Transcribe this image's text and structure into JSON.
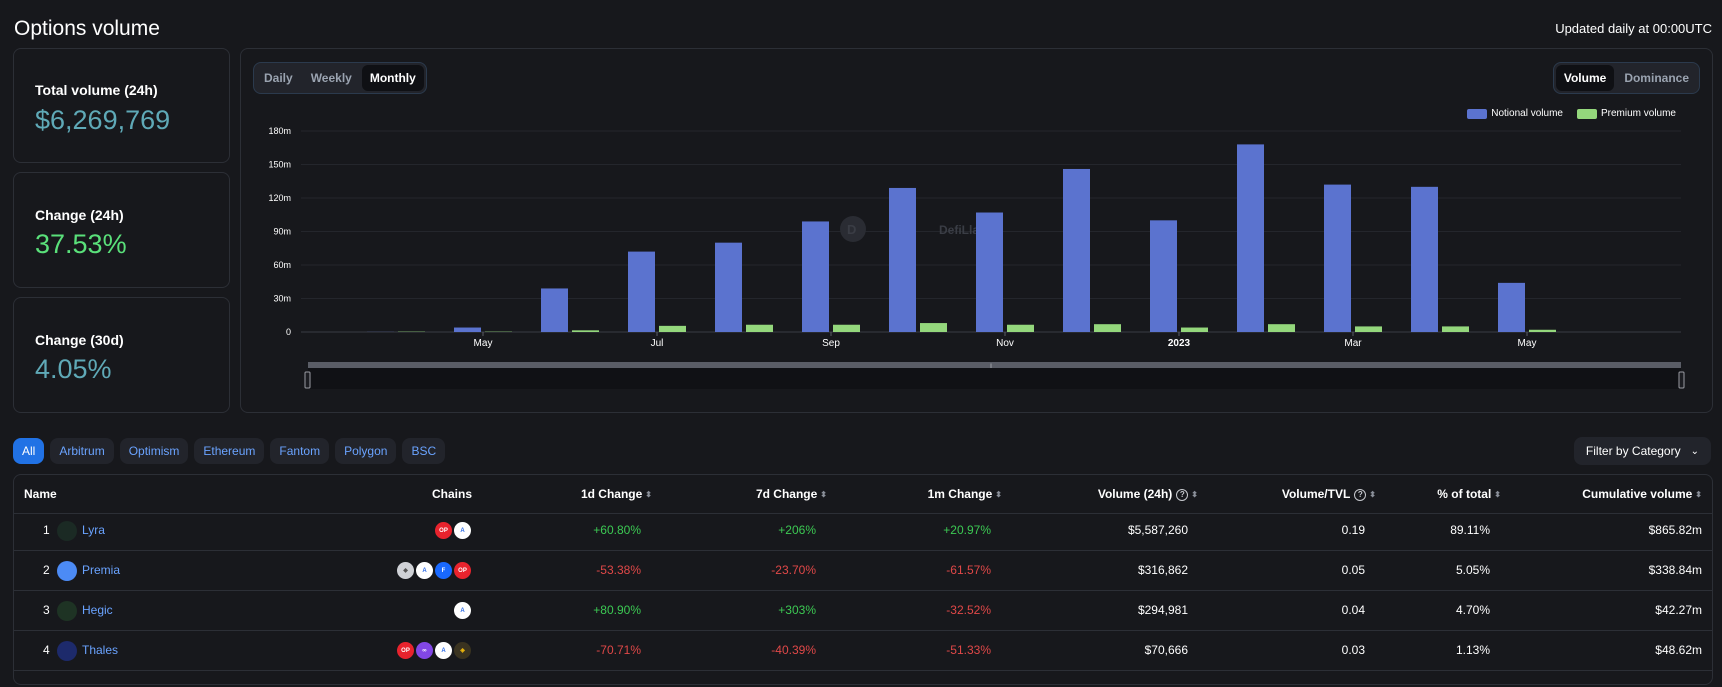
{
  "header": {
    "title": "Options volume",
    "updated": "Updated daily at 00:00UTC"
  },
  "stats": [
    {
      "label": "Total volume (24h)",
      "value": "$6,269,769",
      "color": "#5fa9b7"
    },
    {
      "label": "Change (24h)",
      "value": "37.53%",
      "color": "#5ae07a"
    },
    {
      "label": "Change (30d)",
      "value": "4.05%",
      "color": "#5fa9b7"
    }
  ],
  "period_toggle": {
    "options": [
      "Daily",
      "Weekly",
      "Monthly"
    ],
    "selected": "Monthly"
  },
  "mode_toggle": {
    "options": [
      "Volume",
      "Dominance"
    ],
    "selected": "Volume"
  },
  "watermark": "DefiLlama",
  "colors": {
    "notional": "#5b73cf",
    "premium": "#94d77c",
    "accent": "#2172e5"
  },
  "chart_data": {
    "type": "bar",
    "categories": [
      "Apr 2022",
      "May 2022",
      "Jun 2022",
      "Jul 2022",
      "Aug 2022",
      "Sep 2022",
      "Oct 2022",
      "Nov 2022",
      "Dec 2022",
      "Jan 2023",
      "Feb 2023",
      "Mar 2023",
      "Apr 2023",
      "May 2023",
      "Jun 2023"
    ],
    "x_tick_labels": [
      "May",
      "Jul",
      "Sep",
      "Nov",
      "2023",
      "Mar",
      "May"
    ],
    "series": [
      {
        "name": "Notional volume",
        "values": [
          0.1,
          4,
          39,
          72,
          80,
          99,
          129,
          107,
          146,
          100,
          168,
          132,
          130,
          44,
          0
        ]
      },
      {
        "name": "Premium volume",
        "values": [
          0.3,
          0.3,
          1.5,
          5.5,
          6.5,
          6.5,
          8,
          6.5,
          7,
          4,
          7,
          5,
          5,
          2,
          0
        ]
      }
    ],
    "y_tick_labels": [
      "0",
      "30m",
      "60m",
      "90m",
      "120m",
      "150m",
      "180m"
    ],
    "ylim": [
      0,
      180
    ],
    "legend": "top-right",
    "grid": true
  },
  "filters": {
    "chains": [
      "All",
      "Arbitrum",
      "Optimism",
      "Ethereum",
      "Fantom",
      "Polygon",
      "BSC"
    ],
    "selected": "All",
    "category_button": "Filter by Category"
  },
  "table": {
    "headers": {
      "name": "Name",
      "chains": "Chains",
      "d1": "1d Change",
      "d7": "7d Change",
      "m1": "1m Change",
      "volume": "Volume (24h)",
      "vtvl": "Volume/TVL",
      "pct": "% of total",
      "cum": "Cumulative volume"
    },
    "rows": [
      {
        "rank": "1",
        "name": "Lyra",
        "icon_color": "#1b2a24",
        "chains": [
          "optimism-icon",
          "arbitrum-icon"
        ],
        "d1": "+60.80%",
        "d7": "+206%",
        "m1": "+20.97%",
        "volume": "$5,587,260",
        "vtvl": "0.19",
        "pct": "89.11%",
        "cum": "$865.82m"
      },
      {
        "rank": "2",
        "name": "Premia",
        "icon_color": "#4c8bf5",
        "chains": [
          "ethereum-icon",
          "arbitrum-icon",
          "fantom-icon",
          "optimism-icon"
        ],
        "d1": "-53.38%",
        "d7": "-23.70%",
        "m1": "-61.57%",
        "volume": "$316,862",
        "vtvl": "0.05",
        "pct": "5.05%",
        "cum": "$338.84m"
      },
      {
        "rank": "3",
        "name": "Hegic",
        "icon_color": "#1e3324",
        "chains": [
          "arbitrum-icon"
        ],
        "d1": "+80.90%",
        "d7": "+303%",
        "m1": "-32.52%",
        "volume": "$294,981",
        "vtvl": "0.04",
        "pct": "4.70%",
        "cum": "$42.27m"
      },
      {
        "rank": "4",
        "name": "Thales",
        "icon_color": "#1d2a6b",
        "chains": [
          "optimism-icon",
          "polygon-icon",
          "arbitrum-icon",
          "bsc-icon"
        ],
        "d1": "-70.71%",
        "d7": "-40.39%",
        "m1": "-51.33%",
        "volume": "$70,666",
        "vtvl": "0.03",
        "pct": "1.13%",
        "cum": "$48.62m"
      }
    ]
  }
}
